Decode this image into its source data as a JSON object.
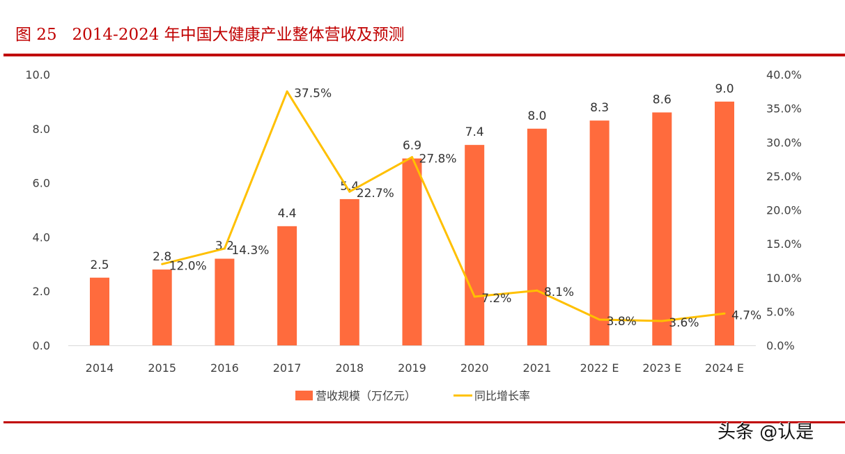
{
  "title": "图 25   2014-2024 年中国大健康产业整体营收及预测",
  "watermark": "头条 @认是",
  "colors": {
    "bar": "#ff6b3d",
    "line": "#ffc000",
    "rule": "#c00000"
  },
  "chart_data": {
    "type": "bar+line",
    "categories": [
      "2014",
      "2015",
      "2016",
      "2017",
      "2018",
      "2019",
      "2020",
      "2021",
      "2022 E",
      "2023 E",
      "2024 E"
    ],
    "series": [
      {
        "name": "营收规模（万亿元）",
        "type": "bar",
        "axis": "left",
        "values": [
          2.5,
          2.8,
          3.2,
          4.4,
          5.4,
          6.9,
          7.4,
          8.0,
          8.3,
          8.6,
          9.0
        ],
        "labels": [
          "2.5",
          "2.8",
          "3.2",
          "4.4",
          "5.4",
          "6.9",
          "7.4",
          "8.0",
          "8.3",
          "8.6",
          "9.0"
        ]
      },
      {
        "name": "同比增长率",
        "type": "line",
        "axis": "right",
        "values": [
          null,
          12.0,
          14.3,
          37.5,
          22.7,
          27.8,
          7.2,
          8.1,
          3.8,
          3.6,
          4.7
        ],
        "labels": [
          null,
          "12.0%",
          "14.3%",
          "37.5%",
          "22.7%",
          "27.8%",
          "7.2%",
          "8.1%",
          "3.8%",
          "3.6%",
          "4.7%"
        ]
      }
    ],
    "yleft": {
      "lim": [
        0,
        10
      ],
      "ticks": [
        "0.0",
        "2.0",
        "4.0",
        "6.0",
        "8.0",
        "10.0"
      ]
    },
    "yright": {
      "lim": [
        0,
        40
      ],
      "ticks": [
        "0.0%",
        "5.0%",
        "10.0%",
        "15.0%",
        "20.0%",
        "25.0%",
        "30.0%",
        "35.0%",
        "40.0%"
      ]
    },
    "grid": false,
    "legend": "bottom"
  }
}
